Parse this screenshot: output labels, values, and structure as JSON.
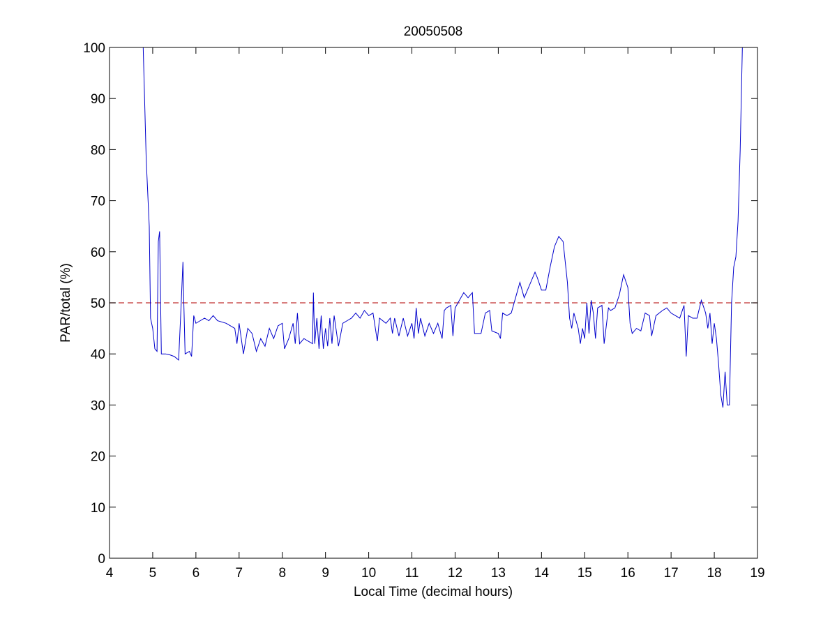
{
  "chart_data": {
    "type": "line",
    "title": "20050508",
    "x_label": "Local Time (decimal hours)",
    "y_label": "PAR/total (%)",
    "xlim": [
      4,
      19
    ],
    "ylim": [
      0,
      100
    ],
    "xticks": [
      4,
      5,
      6,
      7,
      8,
      9,
      10,
      11,
      12,
      13,
      14,
      15,
      16,
      17,
      18,
      19
    ],
    "yticks": [
      0,
      10,
      20,
      30,
      40,
      50,
      60,
      70,
      80,
      90,
      100
    ],
    "reference_line": {
      "y": 50,
      "color": "#c03030",
      "dashed": true
    },
    "x": [
      4.78,
      4.85,
      4.92,
      4.95,
      5.0,
      5.05,
      5.1,
      5.13,
      5.16,
      5.2,
      5.3,
      5.4,
      5.5,
      5.6,
      5.65,
      5.7,
      5.72,
      5.75,
      5.85,
      5.9,
      5.95,
      6.0,
      6.1,
      6.2,
      6.3,
      6.4,
      6.5,
      6.7,
      6.9,
      6.95,
      7.0,
      7.05,
      7.1,
      7.2,
      7.3,
      7.4,
      7.5,
      7.6,
      7.7,
      7.8,
      7.9,
      8.0,
      8.05,
      8.15,
      8.25,
      8.3,
      8.35,
      8.4,
      8.5,
      8.6,
      8.7,
      8.72,
      8.75,
      8.8,
      8.85,
      8.9,
      8.95,
      9.0,
      9.05,
      9.1,
      9.15,
      9.2,
      9.3,
      9.4,
      9.5,
      9.6,
      9.7,
      9.8,
      9.9,
      10.0,
      10.1,
      10.2,
      10.25,
      10.4,
      10.5,
      10.55,
      10.6,
      10.7,
      10.8,
      10.9,
      11.0,
      11.05,
      11.1,
      11.15,
      11.2,
      11.3,
      11.4,
      11.5,
      11.6,
      11.7,
      11.75,
      11.8,
      11.9,
      11.95,
      12.0,
      12.1,
      12.2,
      12.3,
      12.4,
      12.45,
      12.6,
      12.7,
      12.8,
      12.85,
      13.0,
      13.05,
      13.1,
      13.2,
      13.3,
      13.4,
      13.5,
      13.6,
      13.7,
      13.85,
      13.9,
      14.0,
      14.1,
      14.2,
      14.3,
      14.4,
      14.5,
      14.6,
      14.65,
      14.7,
      14.75,
      14.85,
      14.9,
      14.95,
      15.0,
      15.05,
      15.1,
      15.15,
      15.2,
      15.25,
      15.3,
      15.4,
      15.45,
      15.55,
      15.6,
      15.7,
      15.8,
      15.9,
      16.0,
      16.05,
      16.1,
      16.2,
      16.3,
      16.4,
      16.5,
      16.55,
      16.65,
      16.8,
      16.9,
      17.0,
      17.1,
      17.2,
      17.3,
      17.35,
      17.4,
      17.5,
      17.6,
      17.7,
      17.8,
      17.85,
      17.9,
      17.95,
      18.0,
      18.05,
      18.1,
      18.15,
      18.2,
      18.25,
      18.3,
      18.35,
      18.4,
      18.45,
      18.5,
      18.55,
      18.6,
      18.65
    ],
    "series": [
      {
        "color": "#0000cc",
        "values": [
          100,
          78,
          65,
          47,
          45,
          41,
          40.5,
          62,
          64,
          40,
          40,
          39.8,
          39.5,
          38.8,
          48,
          58,
          50,
          40,
          40.5,
          39.5,
          47.5,
          46,
          46.5,
          47,
          46.5,
          47.5,
          46.5,
          46,
          45,
          42,
          46,
          43,
          40,
          45,
          44,
          40.5,
          43,
          41.5,
          45,
          43,
          45.5,
          46,
          41,
          43,
          46,
          42,
          48,
          42,
          43,
          42.5,
          42,
          52,
          42,
          47,
          41,
          47.5,
          41,
          45,
          41.5,
          47,
          42,
          47.5,
          41.5,
          46,
          46.5,
          47,
          48,
          47,
          48.5,
          47.5,
          48,
          42.5,
          47,
          46,
          47,
          44,
          47,
          43.5,
          47,
          43.5,
          46,
          43,
          49,
          44,
          47,
          43.5,
          46,
          44,
          46,
          43,
          48.5,
          49,
          49.5,
          43.5,
          49,
          50.5,
          52,
          51,
          52,
          44,
          44,
          48,
          48.5,
          44.5,
          44,
          43,
          48,
          47.5,
          48,
          51,
          54,
          51,
          53,
          56,
          55,
          52.5,
          52.5,
          57,
          61,
          63,
          62,
          54,
          47,
          45,
          48,
          45,
          42,
          45,
          43,
          50,
          44,
          50.5,
          48,
          43,
          49,
          49.5,
          42,
          49,
          48.5,
          49,
          51.5,
          55.5,
          53,
          46,
          44,
          45,
          44.5,
          48,
          47.5,
          43.5,
          47.5,
          48.5,
          49,
          48,
          47.5,
          47,
          49.5,
          39.5,
          47.5,
          47,
          47,
          50.5,
          48,
          45,
          48,
          42,
          46,
          43,
          38,
          32,
          29.5,
          36.5,
          30,
          30,
          50,
          57,
          59,
          66,
          80,
          100
        ]
      }
    ]
  }
}
